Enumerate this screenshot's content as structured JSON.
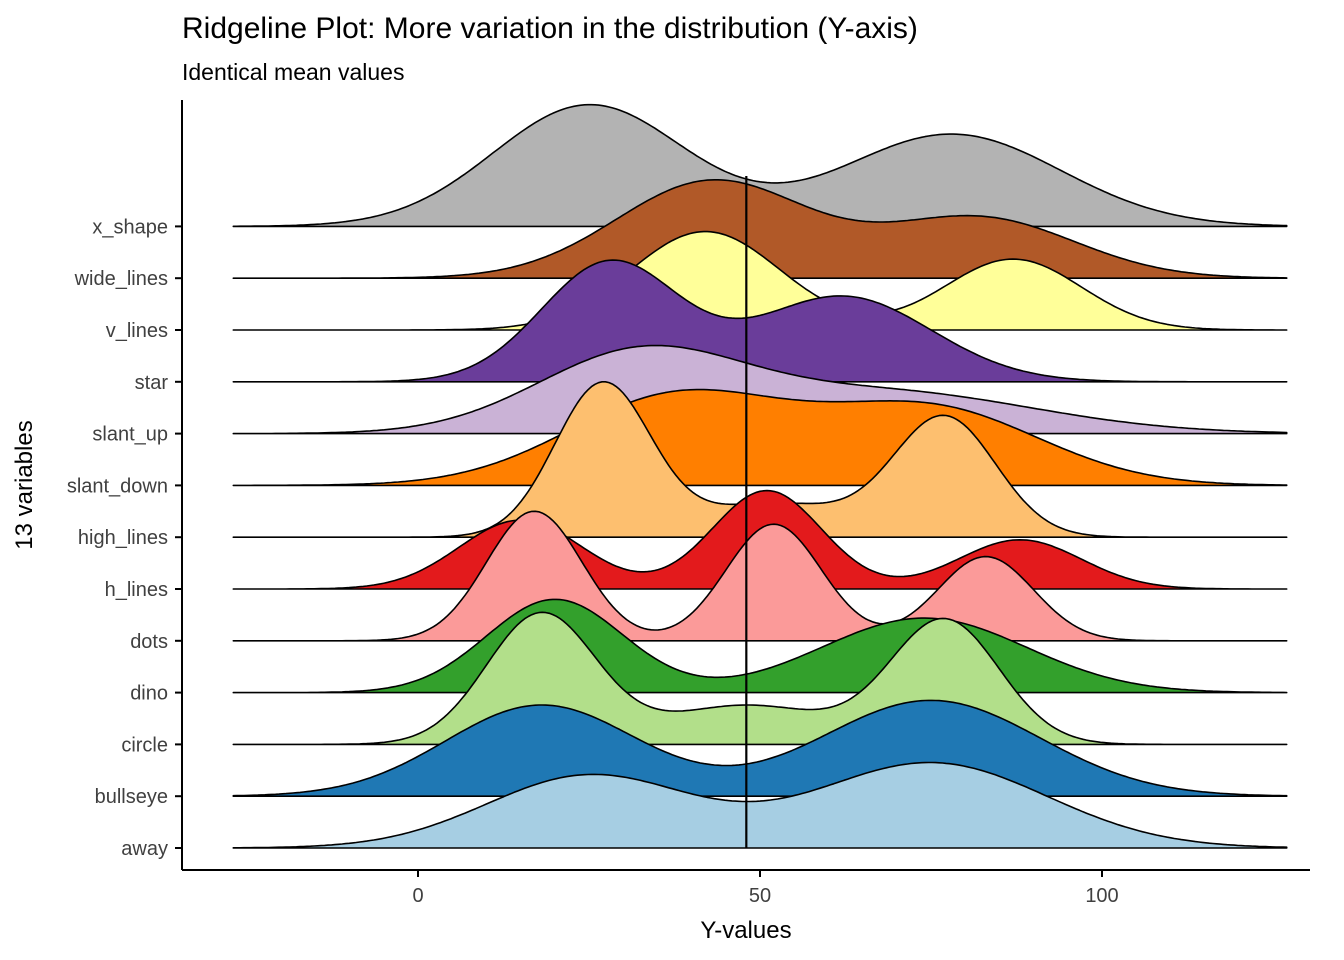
{
  "title": "Ridgeline Plot: More variation in the distribution (Y-axis)",
  "subtitle": "Identical mean values",
  "x_axis": {
    "label": "Y-values",
    "tick_values": [
      0,
      50,
      100
    ],
    "tick_labels": [
      "0",
      "50",
      "100"
    ]
  },
  "y_axis": {
    "label": "13 variables"
  },
  "chart_data": {
    "type": "area",
    "variant": "ridgeline",
    "title": "Ridgeline Plot: More variation in the distribution (Y-axis)",
    "subtitle": "Identical mean values",
    "xlabel": "Y-values",
    "ylabel": "13 variables",
    "xlim": [
      -27,
      127
    ],
    "grid": false,
    "mean_line": {
      "x": 48,
      "color": "#000000"
    },
    "categories_top_to_bottom": [
      "x_shape",
      "wide_lines",
      "v_lines",
      "star",
      "slant_up",
      "slant_down",
      "high_lines",
      "h_lines",
      "dots",
      "dino",
      "circle",
      "bullseye",
      "away"
    ],
    "outline_color": "#000000",
    "series": [
      {
        "name": "away",
        "color": "#A6CEE3",
        "peak_rows": 1.65,
        "components": [
          {
            "mean": 25,
            "sd": 15,
            "weight": 0.85
          },
          {
            "mean": 75,
            "sd": 17,
            "weight": 1.0
          }
        ]
      },
      {
        "name": "bullseye",
        "color": "#1F78B4",
        "peak_rows": 1.85,
        "components": [
          {
            "mean": 18,
            "sd": 14,
            "weight": 0.95
          },
          {
            "mean": 75,
            "sd": 16,
            "weight": 1.0
          }
        ]
      },
      {
        "name": "circle",
        "color": "#B2DF8A",
        "peak_rows": 2.55,
        "components": [
          {
            "mean": 18,
            "sd": 8,
            "weight": 1.0
          },
          {
            "mean": 48,
            "sd": 12,
            "weight": 0.3
          },
          {
            "mean": 77,
            "sd": 8,
            "weight": 0.95
          }
        ]
      },
      {
        "name": "dino",
        "color": "#33A02C",
        "peak_rows": 1.8,
        "components": [
          {
            "mean": 20,
            "sd": 10,
            "weight": 1.0
          },
          {
            "mean": 74,
            "sd": 15,
            "weight": 0.8
          }
        ]
      },
      {
        "name": "dots",
        "color": "#FB9A99",
        "peak_rows": 2.5,
        "components": [
          {
            "mean": 17,
            "sd": 7,
            "weight": 1.0
          },
          {
            "mean": 52,
            "sd": 7,
            "weight": 0.9
          },
          {
            "mean": 83,
            "sd": 7,
            "weight": 0.65
          }
        ]
      },
      {
        "name": "h_lines",
        "color": "#E31A1C",
        "peak_rows": 1.9,
        "components": [
          {
            "mean": 15,
            "sd": 9,
            "weight": 0.7
          },
          {
            "mean": 51,
            "sd": 8,
            "weight": 1.0
          },
          {
            "mean": 88,
            "sd": 9,
            "weight": 0.5
          }
        ]
      },
      {
        "name": "high_lines",
        "color": "#FDBF6F",
        "peak_rows": 3.0,
        "components": [
          {
            "mean": 27,
            "sd": 7,
            "weight": 1.0
          },
          {
            "mean": 52,
            "sd": 11,
            "weight": 0.22
          },
          {
            "mean": 77,
            "sd": 7.5,
            "weight": 0.78
          }
        ]
      },
      {
        "name": "slant_down",
        "color": "#FF7F00",
        "peak_rows": 1.85,
        "components": [
          {
            "mean": 38,
            "sd": 16,
            "weight": 1.0
          },
          {
            "mean": 75,
            "sd": 16,
            "weight": 0.85
          }
        ]
      },
      {
        "name": "slant_up",
        "color": "#CAB2D6",
        "peak_rows": 1.7,
        "components": [
          {
            "mean": 32,
            "sd": 15,
            "weight": 1.0
          },
          {
            "mean": 68,
            "sd": 22,
            "weight": 0.55
          }
        ]
      },
      {
        "name": "star",
        "color": "#6A3D9A",
        "peak_rows": 2.35,
        "components": [
          {
            "mean": 28,
            "sd": 10,
            "weight": 1.0
          },
          {
            "mean": 62,
            "sd": 13,
            "weight": 0.72
          }
        ]
      },
      {
        "name": "v_lines",
        "color": "#FFFF99",
        "peak_rows": 1.9,
        "components": [
          {
            "mean": 42,
            "sd": 11,
            "weight": 1.0
          },
          {
            "mean": 87,
            "sd": 10,
            "weight": 0.72
          }
        ]
      },
      {
        "name": "wide_lines",
        "color": "#B15928",
        "peak_rows": 1.9,
        "components": [
          {
            "mean": 43,
            "sd": 14,
            "weight": 1.0
          },
          {
            "mean": 82,
            "sd": 14,
            "weight": 0.62
          }
        ]
      },
      {
        "name": "x_shape",
        "color": "#B3B3B3",
        "peak_rows": 2.35,
        "components": [
          {
            "mean": 25,
            "sd": 14,
            "weight": 1.0
          },
          {
            "mean": 78,
            "sd": 16,
            "weight": 0.76
          }
        ]
      }
    ]
  }
}
